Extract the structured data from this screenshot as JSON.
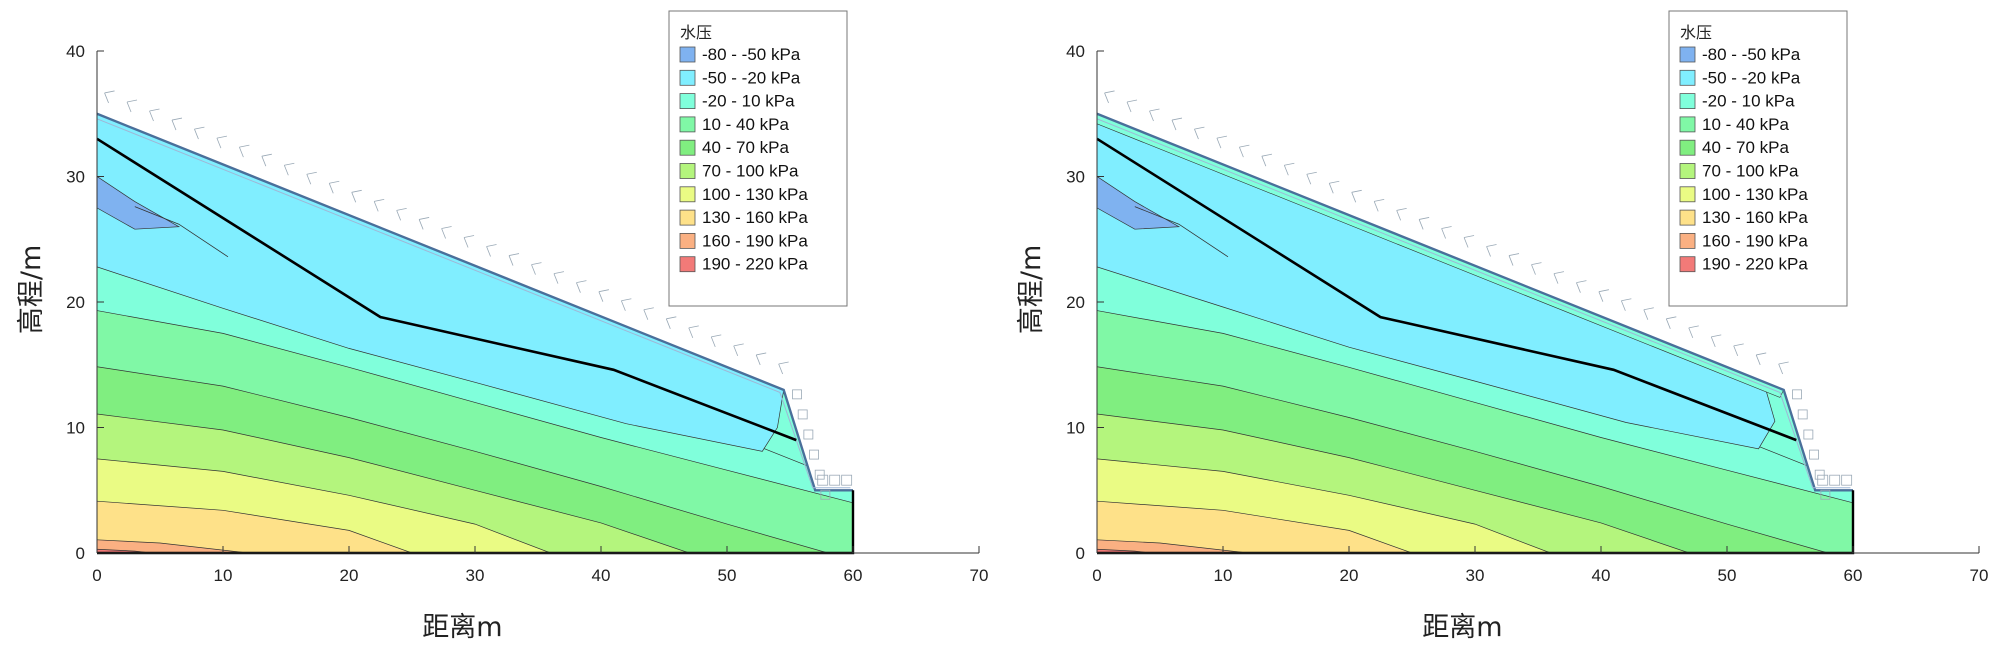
{
  "chart_data": [
    {
      "type": "contour",
      "title": "",
      "xlabel": "距离m",
      "ylabel": "高程/m",
      "xlim": [
        0,
        70
      ],
      "ylim": [
        0,
        40
      ],
      "xticks": [
        "0",
        "10",
        "20",
        "30",
        "40",
        "50",
        "60",
        "70"
      ],
      "yticks": [
        "0",
        "10",
        "20",
        "30",
        "40"
      ],
      "legend_title": "水压",
      "legend_position": "top-right",
      "legend": [
        {
          "label": "-80 - -50 kPa",
          "color": "#7FB2F0"
        },
        {
          "label": "-50 - -20 kPa",
          "color": "#80EEFF"
        },
        {
          "label": "-20 - 10 kPa",
          "color": "#80FFDB"
        },
        {
          "label": "10 - 40 kPa",
          "color": "#80F8A6"
        },
        {
          "label": "40 - 70 kPa",
          "color": "#80EE80"
        },
        {
          "label": "70 - 100 kPa",
          "color": "#B4F57D"
        },
        {
          "label": "100 - 130 kPa",
          "color": "#EAFB84"
        },
        {
          "label": "130 - 160 kPa",
          "color": "#FEE189"
        },
        {
          "label": "160 - 190 kPa",
          "color": "#FAB082"
        },
        {
          "label": "190 - 220 kPa",
          "color": "#F27A78"
        }
      ],
      "slope_profile": [
        [
          0,
          0
        ],
        [
          0,
          35
        ],
        [
          54.5,
          13
        ],
        [
          57,
          5
        ],
        [
          60,
          5
        ],
        [
          60,
          0
        ]
      ],
      "water_table": [
        [
          0,
          33
        ],
        [
          22.5,
          18.8
        ],
        [
          41,
          14.6
        ],
        [
          55.5,
          9
        ]
      ],
      "suction_zone_outline": [
        [
          0,
          34.5
        ],
        [
          54,
          13
        ],
        [
          53.8,
          8.5
        ],
        [
          0,
          23
        ]
      ],
      "variant": "left"
    },
    {
      "type": "contour",
      "title": "",
      "xlabel": "距离m",
      "ylabel": "高程/m",
      "xlim": [
        0,
        70
      ],
      "ylim": [
        0,
        40
      ],
      "xticks": [
        "0",
        "10",
        "20",
        "30",
        "40",
        "50",
        "60",
        "70"
      ],
      "yticks": [
        "0",
        "10",
        "20",
        "30",
        "40"
      ],
      "legend_title": "水压",
      "legend_position": "top-right",
      "legend": [
        {
          "label": "-80 - -50 kPa",
          "color": "#7FB2F0"
        },
        {
          "label": "-50 - -20 kPa",
          "color": "#80EEFF"
        },
        {
          "label": "-20 - 10 kPa",
          "color": "#80FFDB"
        },
        {
          "label": "10 - 40 kPa",
          "color": "#80F8A6"
        },
        {
          "label": "40 - 70 kPa",
          "color": "#80EE80"
        },
        {
          "label": "70 - 100 kPa",
          "color": "#B4F57D"
        },
        {
          "label": "100 - 130 kPa",
          "color": "#EAFB84"
        },
        {
          "label": "130 - 160 kPa",
          "color": "#FEE189"
        },
        {
          "label": "160 - 190 kPa",
          "color": "#FAB082"
        },
        {
          "label": "190 - 220 kPa",
          "color": "#F27A78"
        }
      ],
      "slope_profile": [
        [
          0,
          0
        ],
        [
          0,
          35
        ],
        [
          54.5,
          13
        ],
        [
          57,
          5
        ],
        [
          60,
          5
        ],
        [
          60,
          0
        ]
      ],
      "water_table": [
        [
          0,
          33
        ],
        [
          22.5,
          18.8
        ],
        [
          41,
          14.6
        ],
        [
          55.5,
          9
        ]
      ],
      "suction_zone_outline": [
        [
          0,
          34.5
        ],
        [
          54,
          13
        ],
        [
          53.8,
          8.5
        ],
        [
          0,
          23
        ]
      ],
      "variant": "right"
    }
  ]
}
